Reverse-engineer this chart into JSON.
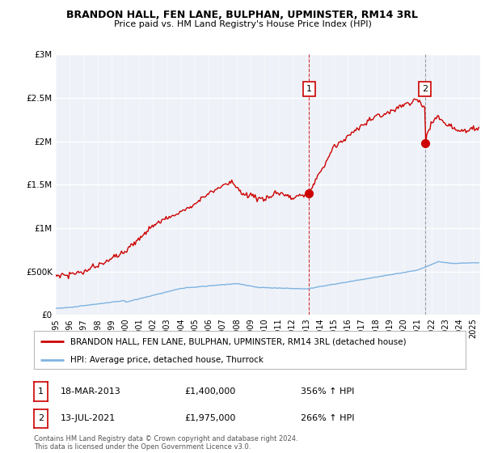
{
  "title": "BRANDON HALL, FEN LANE, BULPHAN, UPMINSTER, RM14 3RL",
  "subtitle": "Price paid vs. HM Land Registry's House Price Index (HPI)",
  "ylabel_ticks": [
    "£0",
    "£500K",
    "£1M",
    "£1.5M",
    "£2M",
    "£2.5M",
    "£3M"
  ],
  "ytick_vals": [
    0,
    500000,
    1000000,
    1500000,
    2000000,
    2500000,
    3000000
  ],
  "ylim": [
    0,
    3000000
  ],
  "xlim_start": 1995.0,
  "xlim_end": 2025.5,
  "hpi_color": "#7fb3e0",
  "price_color": "#cc0000",
  "marker1_x": 2013.21,
  "marker1_y": 1400000,
  "marker2_x": 2021.53,
  "marker2_y": 1975000,
  "legend_label1": "BRANDON HALL, FEN LANE, BULPHAN, UPMINSTER, RM14 3RL (detached house)",
  "legend_label2": "HPI: Average price, detached house, Thurrock",
  "note1_date": "18-MAR-2013",
  "note1_price": "£1,400,000",
  "note1_hpi": "356% ↑ HPI",
  "note2_date": "13-JUL-2021",
  "note2_price": "£1,975,000",
  "note2_hpi": "266% ↑ HPI",
  "footer": "Contains HM Land Registry data © Crown copyright and database right 2024.\nThis data is licensed under the Open Government Licence v3.0.",
  "background_color": "#eef2f8",
  "fig_bg": "#ffffff"
}
